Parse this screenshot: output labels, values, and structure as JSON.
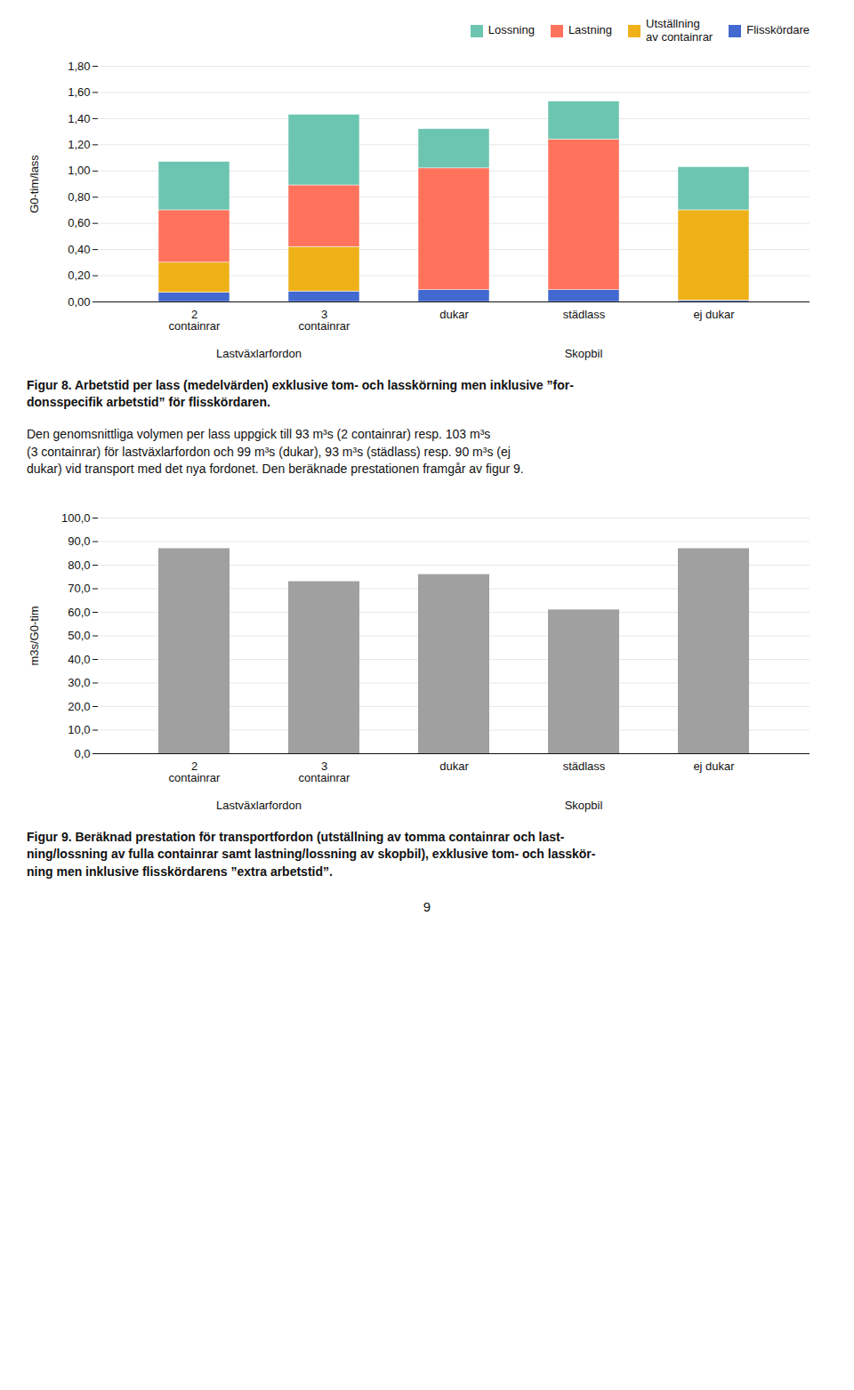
{
  "chart_data": [
    {
      "type": "bar",
      "stacked": true,
      "categories": [
        "2\ncontainrar",
        "3\ncontainrar",
        "dukar",
        "städlass",
        "ej dukar"
      ],
      "series": [
        {
          "name": "Flisskördare",
          "values": [
            0.07,
            0.08,
            0.09,
            0.09,
            0.01
          ]
        },
        {
          "name": "Utställning\nav containrar",
          "values": [
            0.23,
            0.34,
            0.0,
            0.0,
            0.69
          ]
        },
        {
          "name": "Lastning",
          "values": [
            0.4,
            0.47,
            0.93,
            1.15,
            0.0
          ]
        },
        {
          "name": "Lossning",
          "values": [
            0.37,
            0.54,
            0.3,
            0.29,
            0.33
          ]
        }
      ],
      "ylabel": "G0-tim/lass",
      "ylim": [
        0,
        1.8
      ],
      "yticks": [
        {
          "value": 0,
          "label": "0,00"
        },
        {
          "value": 0.2,
          "label": "0,20"
        },
        {
          "value": 0.4,
          "label": "0,40"
        },
        {
          "value": 0.6,
          "label": "0,60"
        },
        {
          "value": 0.8,
          "label": "0,80"
        },
        {
          "value": 1.0,
          "label": "1,00"
        },
        {
          "value": 1.2,
          "label": "1,20"
        },
        {
          "value": 1.4,
          "label": "1,40"
        },
        {
          "value": 1.6,
          "label": "1,60"
        },
        {
          "value": 1.8,
          "label": "1,80"
        }
      ],
      "grid": true,
      "legend": "upper right",
      "annotations": [
        {
          "text": "Lastväxlarfordon",
          "under": [
            "2\ncontainrar",
            "3\ncontainrar"
          ]
        },
        {
          "text": "Skopbil",
          "under": [
            "dukar",
            "städlass",
            "ej dukar"
          ]
        }
      ],
      "caption": "Figur 8. Arbetstid per lass (medelvärden) exklusive tom- och lasskörning men inklusive ”for-\ndonsspecifik arbetstid” för flisskördaren."
    },
    {
      "type": "bar",
      "categories": [
        "2\ncontainrar",
        "3\ncontainrar",
        "dukar",
        "städlass",
        "ej dukar"
      ],
      "values": [
        87.0,
        73.0,
        76.0,
        61.0,
        87.0
      ],
      "color": "#a0a0a0",
      "ylabel": "m3s/G0-tim",
      "ylim": [
        0,
        100
      ],
      "yticks": [
        {
          "value": 0,
          "label": "0,0"
        },
        {
          "value": 10,
          "label": "10,0"
        },
        {
          "value": 20,
          "label": "20,0"
        },
        {
          "value": 30,
          "label": "30,0"
        },
        {
          "value": 40,
          "label": "40,0"
        },
        {
          "value": 50,
          "label": "50,0"
        },
        {
          "value": 60,
          "label": "60,0"
        },
        {
          "value": 70,
          "label": "70,0"
        },
        {
          "value": 80,
          "label": "80,0"
        },
        {
          "value": 90,
          "label": "90,0"
        },
        {
          "value": 100,
          "label": "100,0"
        }
      ],
      "grid": true,
      "annotations": [
        {
          "text": "Lastväxlarfordon",
          "under": [
            "2\ncontainrar",
            "3\ncontainrar"
          ]
        },
        {
          "text": "Skopbil",
          "under": [
            "dukar",
            "städlass",
            "ej dukar"
          ]
        }
      ],
      "caption": "Figur 9. Beräknad prestation för transportfordon (utställning av tomma containrar och last-\nning/lossning av fulla containrar samt lastning/lossning av skopbil), exklusive tom- och lasskör-\nning men inklusive flisskördarens ”extra arbetstid”."
    }
  ],
  "texts": {
    "body": "Den genomsnittliga volymen per lass uppgick till 93 m³s (2 containrar) resp. 103 m³s\n(3 containrar) för lastväxlarfordon och 99 m³s (dukar), 93 m³s (städlass) resp. 90 m³s (ej\ndukar) vid transport med det nya fordonet. Den beräknade prestationen framgår av figur 9.",
    "page_number": "9"
  }
}
